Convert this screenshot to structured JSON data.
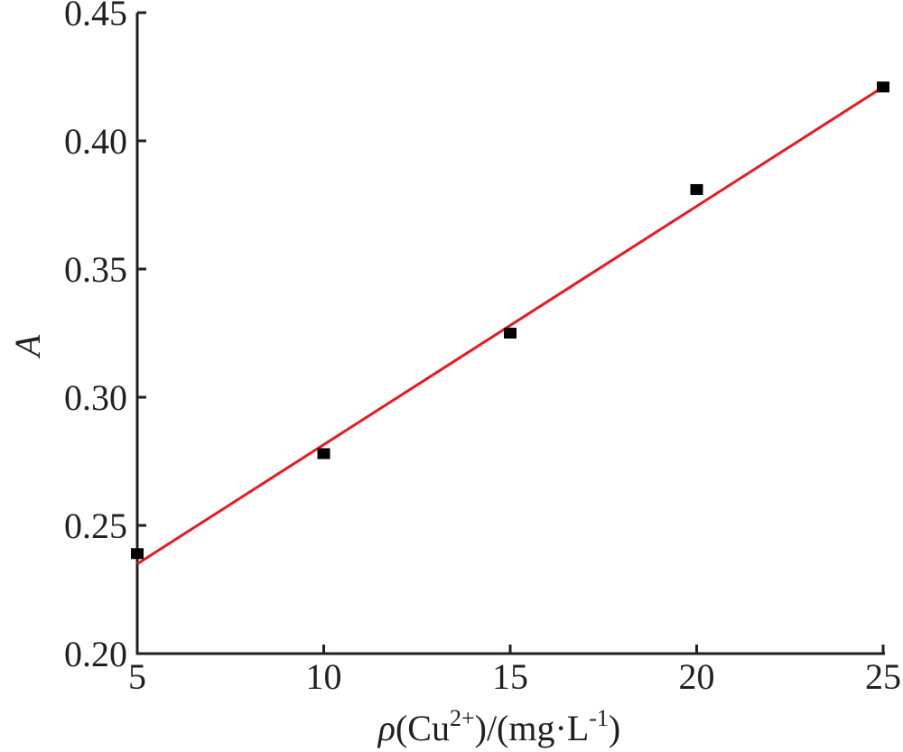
{
  "chart_data": {
    "type": "scatter",
    "title": "",
    "xlabel": {
      "rho": "ρ",
      "open": "(Cu",
      "charge": "2+",
      "middle": ")/(mg·L",
      "exponent": "-1",
      "close": ")"
    },
    "ylabel": "A",
    "xlim": [
      5,
      25
    ],
    "ylim": [
      0.2,
      0.45
    ],
    "xticks": [
      "5",
      "10",
      "15",
      "20",
      "25"
    ],
    "yticks": [
      "0.20",
      "0.25",
      "0.30",
      "0.35",
      "0.40",
      "0.45"
    ],
    "grid": false,
    "legend": "none",
    "series": [
      {
        "marker": "square",
        "color": "#000000",
        "x": [
          5,
          10,
          15,
          20,
          25
        ],
        "y": [
          0.239,
          0.278,
          0.325,
          0.381,
          0.421
        ]
      }
    ],
    "fit_line": {
      "color": "#e8191f",
      "x": [
        5,
        25
      ],
      "y": [
        0.235,
        0.421
      ]
    }
  }
}
